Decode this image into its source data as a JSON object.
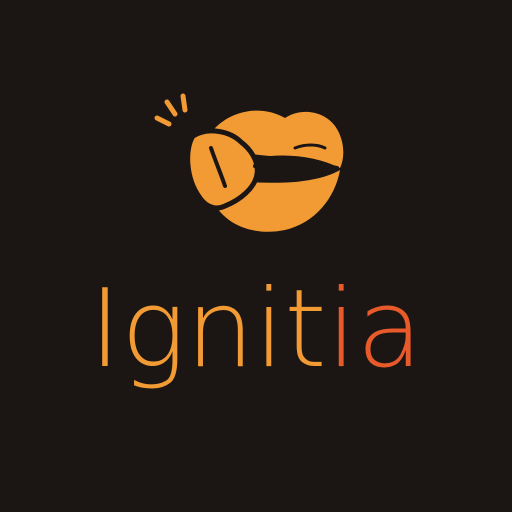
{
  "brand": {
    "name_primary": "Ignit",
    "name_accent": "ia",
    "logo_icon": "lips-icon"
  },
  "colors": {
    "background": "#1b1614",
    "brand_orange": "#f29b35",
    "accent_red_orange": "#e85a2a",
    "lips_outline": "#1b1614"
  }
}
